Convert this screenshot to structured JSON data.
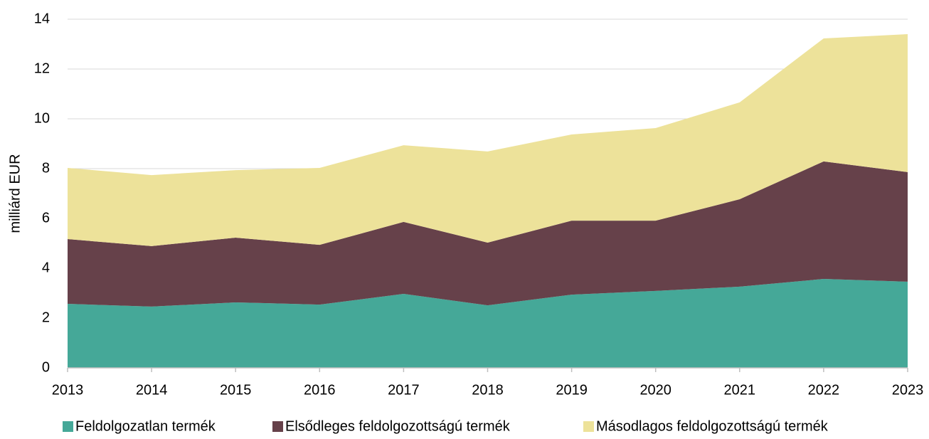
{
  "chart_data": {
    "type": "stacked_area",
    "y_label": "milliárd EUR",
    "categories": [
      "2013",
      "2014",
      "2015",
      "2016",
      "2017",
      "2018",
      "2019",
      "2020",
      "2021",
      "2022",
      "2023"
    ],
    "series": [
      {
        "name": "Feldolgozatlan termék",
        "color": "#45a898",
        "values": [
          2.57,
          2.46,
          2.63,
          2.54,
          2.97,
          2.51,
          2.94,
          3.09,
          3.26,
          3.57,
          3.46
        ]
      },
      {
        "name": "Elsődleges feldolgozottságú termék",
        "color": "#66414a",
        "values": [
          2.6,
          2.43,
          2.6,
          2.4,
          2.89,
          2.52,
          2.97,
          2.82,
          3.51,
          4.72,
          4.4
        ]
      },
      {
        "name": "Másodlagos feldolgozottságú termék",
        "color": "#ede29a",
        "values": [
          2.86,
          2.85,
          2.71,
          3.09,
          3.08,
          3.66,
          3.46,
          3.72,
          3.89,
          4.94,
          5.54
        ]
      }
    ],
    "ylim": [
      0,
      14
    ],
    "yticks": [
      0,
      2,
      4,
      6,
      8,
      10,
      12,
      14
    ],
    "grid": true,
    "legend": "bottom"
  }
}
